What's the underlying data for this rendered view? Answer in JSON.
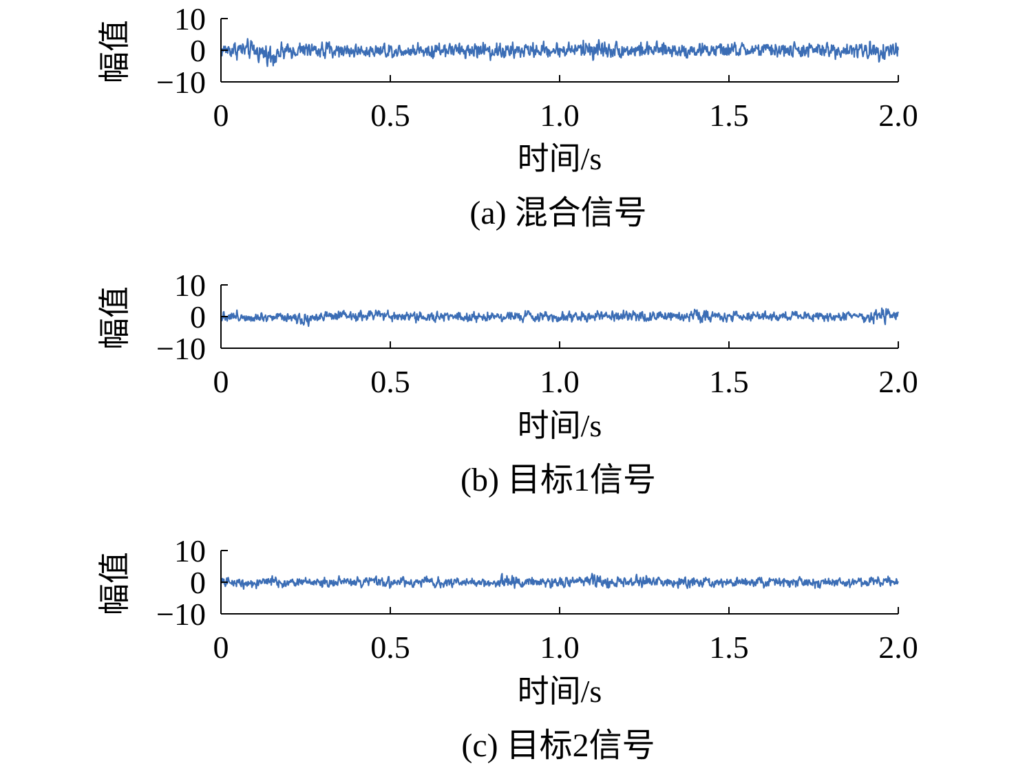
{
  "chart_data": [
    {
      "type": "line",
      "title": "(a) 混合信号",
      "xlabel": "时间/s",
      "ylabel": "幅值",
      "xlim": [
        0,
        2.0
      ],
      "ylim": [
        -10,
        10
      ],
      "xticks": [
        "0",
        "0.5",
        "1.0",
        "1.5",
        "2.0"
      ],
      "yticks": [
        "10",
        "0",
        "−10"
      ],
      "grid": false,
      "line_color": "#3b6db5",
      "series": [
        {
          "x": [
            0,
            0.05,
            0.1,
            0.15,
            0.2,
            0.25,
            0.3,
            0.35,
            0.4,
            0.45,
            0.5,
            0.55,
            0.6,
            0.65,
            0.7,
            0.75,
            0.8,
            0.85,
            0.9,
            0.95,
            1.0,
            1.05,
            1.1,
            1.15,
            1.2,
            1.25,
            1.3,
            1.35,
            1.4,
            1.45,
            1.5,
            1.55,
            1.6,
            1.65,
            1.7,
            1.75,
            1.8,
            1.85,
            1.9,
            1.95,
            2.0
          ],
          "upper": [
            3,
            4,
            3.5,
            3,
            2.5,
            3,
            3.5,
            3,
            2.5,
            3,
            3,
            3,
            3,
            3.5,
            3,
            3,
            3.5,
            3,
            3,
            3,
            3,
            3.5,
            5,
            3.5,
            3,
            3,
            3,
            3,
            3,
            3,
            3,
            3,
            3,
            3,
            3,
            3,
            3,
            3,
            3,
            4.5,
            3
          ],
          "lower": [
            -3,
            -3.5,
            -4,
            -6,
            -3,
            -3,
            -3.5,
            -3,
            -3,
            -3,
            -3,
            -3,
            -3,
            -3,
            -3,
            -3,
            -3.5,
            -4,
            -3,
            -3,
            -3,
            -3,
            -4,
            -3,
            -3,
            -3,
            -3,
            -3,
            -3,
            -3,
            -3,
            -3,
            -3,
            -3,
            -3,
            -3,
            -3,
            -3,
            -3.5,
            -4,
            -3
          ]
        }
      ]
    },
    {
      "type": "line",
      "title": "(b) 目标1信号",
      "xlabel": "时间/s",
      "ylabel": "幅值",
      "xlim": [
        0,
        2.0
      ],
      "ylim": [
        -10,
        10
      ],
      "xticks": [
        "0",
        "0.5",
        "1.0",
        "1.5",
        "2.0"
      ],
      "yticks": [
        "10",
        "0",
        "−10"
      ],
      "grid": false,
      "line_color": "#3b6db5",
      "series": [
        {
          "x": [
            0,
            0.05,
            0.1,
            0.15,
            0.2,
            0.25,
            0.3,
            0.35,
            0.4,
            0.45,
            0.5,
            0.55,
            0.6,
            0.65,
            0.7,
            0.75,
            0.8,
            0.85,
            0.9,
            0.95,
            1.0,
            1.05,
            1.1,
            1.15,
            1.2,
            1.25,
            1.3,
            1.35,
            1.4,
            1.45,
            1.5,
            1.55,
            1.6,
            1.65,
            1.7,
            1.75,
            1.8,
            1.85,
            1.9,
            1.95,
            2.0
          ],
          "upper": [
            2.5,
            2,
            2,
            2,
            2,
            2,
            2,
            2,
            2,
            3,
            2,
            2,
            2,
            2,
            2,
            2,
            2,
            2,
            2,
            2,
            2,
            2,
            2,
            2,
            2,
            2,
            2,
            2,
            3.5,
            2,
            2.5,
            2,
            2,
            2,
            2.5,
            2,
            2,
            2,
            2,
            3.5,
            2
          ],
          "lower": [
            -2,
            -2,
            -2,
            -2,
            -2,
            -3.5,
            -2,
            -2,
            -2,
            -2,
            -2,
            -2,
            -2,
            -2,
            -2,
            -2,
            -2,
            -2,
            -2,
            -2,
            -2,
            -2,
            -2,
            -2,
            -2,
            -2,
            -2,
            -2,
            -2,
            -2,
            -2,
            -2,
            -2,
            -2,
            -2,
            -2,
            -2,
            -2,
            -2,
            -3,
            -2
          ]
        }
      ]
    },
    {
      "type": "line",
      "title": "(c) 目标2信号",
      "xlabel": "时间/s",
      "ylabel": "幅值",
      "xlim": [
        0,
        2.0
      ],
      "ylim": [
        -10,
        10
      ],
      "xticks": [
        "0",
        "0.5",
        "1.0",
        "1.5",
        "2.0"
      ],
      "yticks": [
        "10",
        "0",
        "−10"
      ],
      "grid": false,
      "line_color": "#3b6db5",
      "series": [
        {
          "x": [
            0,
            0.05,
            0.1,
            0.15,
            0.2,
            0.25,
            0.3,
            0.35,
            0.4,
            0.45,
            0.5,
            0.55,
            0.6,
            0.65,
            0.7,
            0.75,
            0.8,
            0.85,
            0.9,
            0.95,
            1.0,
            1.05,
            1.1,
            1.15,
            1.2,
            1.25,
            1.3,
            1.35,
            1.4,
            1.45,
            1.5,
            1.55,
            1.6,
            1.65,
            1.7,
            1.75,
            1.8,
            1.85,
            1.9,
            1.95,
            2.0
          ],
          "upper": [
            1.5,
            2,
            2,
            2,
            2,
            2,
            2,
            2,
            2,
            2,
            2,
            2,
            2,
            2,
            2,
            2,
            2,
            3.5,
            2,
            2,
            2,
            2,
            3.5,
            2,
            2,
            3,
            2,
            2,
            2,
            2,
            2,
            2,
            2,
            2,
            2,
            2,
            2,
            2,
            2,
            2,
            2
          ],
          "lower": [
            -2,
            -2,
            -2.5,
            -2,
            -2,
            -2,
            -2,
            -2,
            -2,
            -2,
            -2,
            -2,
            -2,
            -2,
            -2,
            -2,
            -2,
            -3.5,
            -2,
            -2,
            -2,
            -2,
            -2.5,
            -2,
            -2,
            -2,
            -2,
            -2,
            -2,
            -2,
            -2,
            -2,
            -2,
            -2,
            -2,
            -2,
            -2,
            -2,
            -2,
            -2,
            -2
          ]
        }
      ]
    }
  ]
}
